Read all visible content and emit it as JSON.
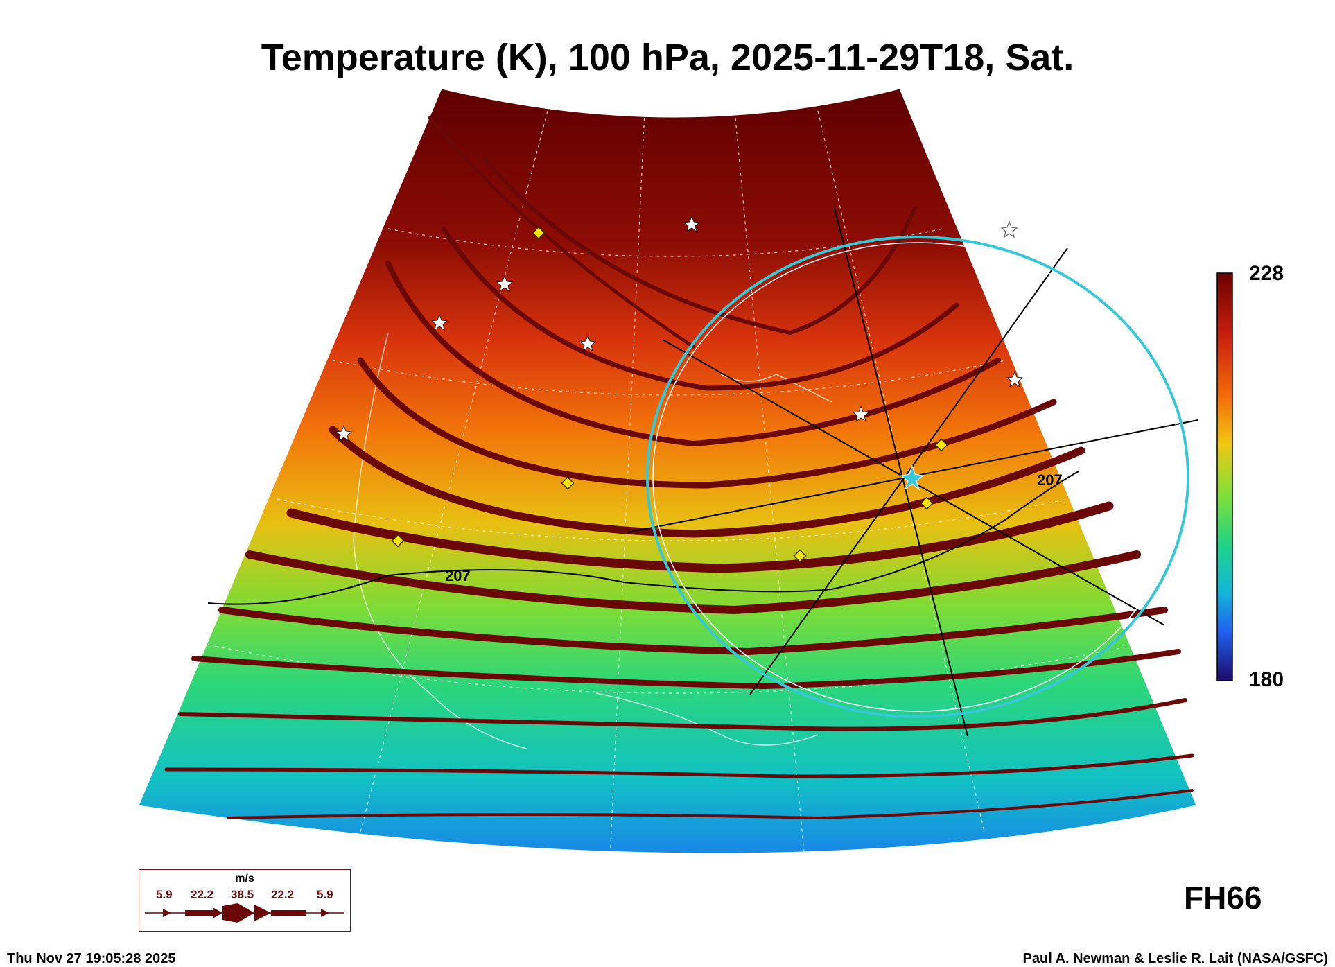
{
  "title": "Temperature (K), 100 hPa, 2025-11-29T18, Sat.",
  "colorbar": {
    "max": "228",
    "min": "180"
  },
  "contours": [
    {
      "label": "207"
    },
    {
      "label": "207"
    }
  ],
  "forecast_hour": "FH66",
  "legend": {
    "unit": "m/s",
    "speeds": [
      "5.9",
      "22.2",
      "38.5",
      "22.2",
      "5.9"
    ]
  },
  "timestamp": "Thu Nov 27 19:05:28 2025",
  "credit": "Paul A. Newman & Leslie R. Lait (NASA/GSFC)",
  "colors": {
    "wind_arrows": "#6a0808",
    "range_ring": "#36c8d8",
    "site_markers": "#ffe400"
  }
}
